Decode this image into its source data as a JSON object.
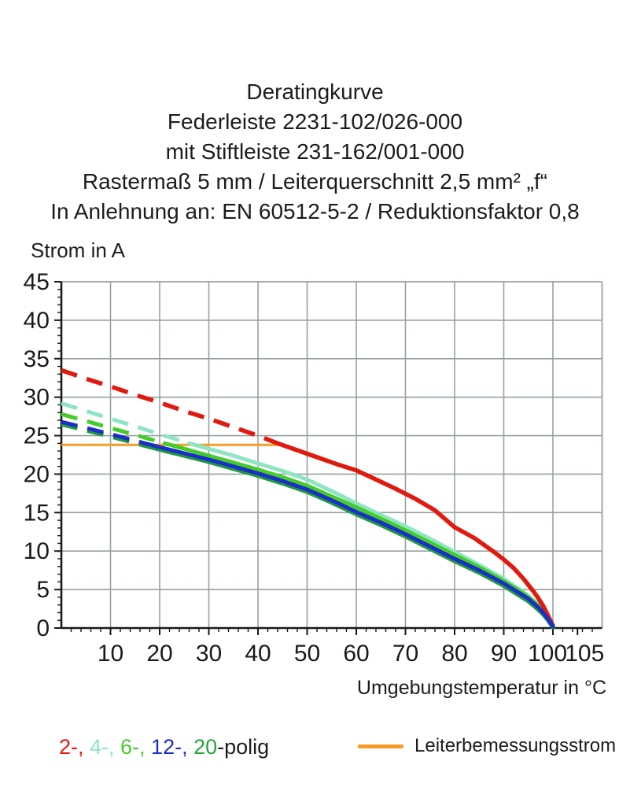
{
  "title": {
    "lines": [
      "Deratingkurve",
      "Federleiste 2231-102/026-000",
      "mit Stiftleiste 231-162/001-000",
      "Rastermaß 5 mm / Leiterquerschnitt 2,5 mm² „f“",
      "In Anlehnung an: EN 60512-5-2 / Reduktionsfaktor 0,8"
    ]
  },
  "chart_data": {
    "type": "line",
    "title": "Deratingkurve",
    "xlabel": "Umgebungstemperatur in °C",
    "ylabel": "Strom in A",
    "xlim": [
      0,
      110
    ],
    "ylim": [
      0,
      45
    ],
    "x_ticks_major": [
      10,
      20,
      30,
      40,
      50,
      60,
      70,
      80,
      90,
      100,
      105
    ],
    "x_minor_step": 2,
    "y_ticks_major": [
      0,
      5,
      10,
      15,
      20,
      25,
      30,
      35,
      40,
      45
    ],
    "y_minor_step": 1,
    "grid": true,
    "grid_color": "#97a1a1",
    "axis_color": "#1a1a1a",
    "legend_position": "below",
    "series": [
      {
        "name": "Leiterbemessungsstrom",
        "color": "#f59d27",
        "width": 3,
        "style": "solid",
        "points": [
          [
            0,
            23.8
          ],
          [
            45,
            23.8
          ]
        ]
      },
      {
        "name": "4-polig",
        "color": "#8fe5c2",
        "width": 5,
        "style": "dashed_then_solid",
        "dash_until_x": 26,
        "points": [
          [
            0,
            29.2
          ],
          [
            5,
            28.2
          ],
          [
            10,
            27.2
          ],
          [
            15,
            26.2
          ],
          [
            20,
            25.2
          ],
          [
            26,
            24.0
          ],
          [
            30,
            23.3
          ],
          [
            35,
            22.4
          ],
          [
            40,
            21.4
          ],
          [
            45,
            20.4
          ],
          [
            50,
            19.3
          ],
          [
            55,
            17.8
          ],
          [
            60,
            16.2
          ],
          [
            65,
            14.7
          ],
          [
            70,
            13.2
          ],
          [
            75,
            11.6
          ],
          [
            80,
            9.9
          ],
          [
            85,
            8.2
          ],
          [
            90,
            6.4
          ],
          [
            93,
            5.1
          ],
          [
            95,
            4.2
          ],
          [
            97,
            3.1
          ],
          [
            98,
            2.4
          ],
          [
            99,
            1.4
          ],
          [
            100,
            0.2
          ]
        ]
      },
      {
        "name": "6-polig",
        "color": "#45cc28",
        "width": 5,
        "style": "dashed_then_solid",
        "dash_until_x": 21,
        "points": [
          [
            0,
            27.8
          ],
          [
            5,
            26.9
          ],
          [
            10,
            26.0
          ],
          [
            15,
            25.1
          ],
          [
            21,
            24.0
          ],
          [
            25,
            23.3
          ],
          [
            30,
            22.4
          ],
          [
            35,
            21.5
          ],
          [
            40,
            20.6
          ],
          [
            45,
            19.6
          ],
          [
            50,
            18.5
          ],
          [
            55,
            17.1
          ],
          [
            60,
            15.7
          ],
          [
            65,
            14.2
          ],
          [
            70,
            12.7
          ],
          [
            75,
            11.1
          ],
          [
            80,
            9.5
          ],
          [
            85,
            7.9
          ],
          [
            90,
            6.1
          ],
          [
            93,
            4.9
          ],
          [
            95,
            4.0
          ],
          [
            97,
            2.9
          ],
          [
            98,
            2.2
          ],
          [
            99,
            1.3
          ],
          [
            100,
            0.2
          ]
        ]
      },
      {
        "name": "2-polig",
        "color": "#e11a0f",
        "width": 5.5,
        "style": "dashed_then_solid",
        "dash_until_x": 44,
        "points": [
          [
            0,
            33.5
          ],
          [
            5,
            32.4
          ],
          [
            10,
            31.4
          ],
          [
            15,
            30.3
          ],
          [
            20,
            29.3
          ],
          [
            25,
            28.2
          ],
          [
            30,
            27.2
          ],
          [
            35,
            26.1
          ],
          [
            40,
            25.0
          ],
          [
            44,
            24.0
          ],
          [
            48,
            23.1
          ],
          [
            52,
            22.2
          ],
          [
            56,
            21.3
          ],
          [
            60,
            20.5
          ],
          [
            64,
            19.3
          ],
          [
            68,
            18.1
          ],
          [
            72,
            16.8
          ],
          [
            76,
            15.3
          ],
          [
            80,
            13.1
          ],
          [
            84,
            11.7
          ],
          [
            88,
            9.9
          ],
          [
            90,
            8.9
          ],
          [
            92,
            7.8
          ],
          [
            94,
            6.4
          ],
          [
            96,
            4.8
          ],
          [
            97,
            3.9
          ],
          [
            98,
            2.9
          ],
          [
            99,
            1.6
          ],
          [
            100,
            0.3
          ]
        ]
      },
      {
        "name": "20-polig",
        "color": "#1f9a3d",
        "width": 5.5,
        "style": "dashed_then_solid",
        "dash_until_x": 17,
        "points": [
          [
            0,
            26.5
          ],
          [
            5,
            25.7
          ],
          [
            10,
            24.9
          ],
          [
            17,
            23.7
          ],
          [
            20,
            23.2
          ],
          [
            25,
            22.4
          ],
          [
            30,
            21.6
          ],
          [
            35,
            20.7
          ],
          [
            40,
            19.8
          ],
          [
            45,
            18.8
          ],
          [
            50,
            17.7
          ],
          [
            55,
            16.3
          ],
          [
            60,
            14.8
          ],
          [
            65,
            13.4
          ],
          [
            70,
            11.9
          ],
          [
            75,
            10.3
          ],
          [
            80,
            8.7
          ],
          [
            85,
            7.2
          ],
          [
            90,
            5.5
          ],
          [
            93,
            4.3
          ],
          [
            95,
            3.5
          ],
          [
            97,
            2.4
          ],
          [
            98,
            1.8
          ],
          [
            99,
            1.0
          ],
          [
            100,
            0.1
          ]
        ]
      },
      {
        "name": "12-polig",
        "color": "#1b2ec9",
        "width": 5,
        "style": "dashed_then_solid",
        "dash_until_x": 17,
        "points": [
          [
            0,
            26.8
          ],
          [
            5,
            26.0
          ],
          [
            10,
            25.2
          ],
          [
            17,
            24.0
          ],
          [
            20,
            23.5
          ],
          [
            25,
            22.7
          ],
          [
            30,
            21.9
          ],
          [
            35,
            21.0
          ],
          [
            40,
            20.1
          ],
          [
            45,
            19.1
          ],
          [
            50,
            18.0
          ],
          [
            55,
            16.6
          ],
          [
            60,
            15.1
          ],
          [
            65,
            13.7
          ],
          [
            70,
            12.2
          ],
          [
            75,
            10.6
          ],
          [
            80,
            9.0
          ],
          [
            85,
            7.5
          ],
          [
            90,
            5.8
          ],
          [
            93,
            4.6
          ],
          [
            95,
            3.8
          ],
          [
            97,
            2.7
          ],
          [
            98,
            2.0
          ],
          [
            99,
            1.2
          ],
          [
            100,
            0.2
          ]
        ]
      }
    ]
  },
  "legend": {
    "poles": [
      {
        "text": "2-,",
        "color": "#e11a0f"
      },
      {
        "text": "4-,",
        "color": "#8fe5c2"
      },
      {
        "text": "6-,",
        "color": "#45cc28"
      },
      {
        "text": "12-,",
        "color": "#1b2ec9"
      },
      {
        "text": "20",
        "color": "#27a53d"
      }
    ],
    "poles_suffix": "-polig",
    "rated_label": "Leiterbemessungsstrom",
    "rated_color": "#f59d27"
  }
}
